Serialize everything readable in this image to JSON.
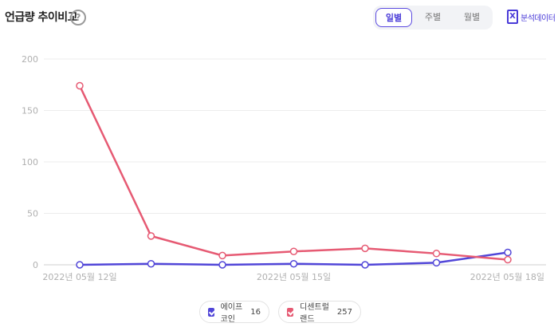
{
  "header": {
    "title": "언급량 추이비교",
    "help_glyph": "?",
    "tabs": [
      {
        "label": "일별",
        "active": true
      },
      {
        "label": "주별",
        "active": false
      },
      {
        "label": "월별",
        "active": false
      }
    ],
    "download_label": "분석데이터"
  },
  "chart_data": {
    "type": "line",
    "y_ticks": [
      "200",
      "150",
      "100",
      "50",
      "0"
    ],
    "ylim": [
      0,
      200
    ],
    "x_labels": [
      "2022년 05월 12일",
      "2022년 05월 15일",
      "2022년 05월 18일"
    ],
    "x": [
      "2022-05-12",
      "2022-05-13",
      "2022-05-14",
      "2022-05-15",
      "2022-05-16",
      "2022-05-17",
      "2022-05-18"
    ],
    "grid": true,
    "series": [
      {
        "name": "에이프코인",
        "color": "#5146d8",
        "values": [
          0,
          1,
          0,
          1,
          0,
          2,
          12
        ]
      },
      {
        "name": "디센트럴랜드",
        "color": "#e65a73",
        "values": [
          174,
          28,
          9,
          13,
          16,
          11,
          5
        ]
      }
    ]
  },
  "legend": [
    {
      "name": "에이프코인",
      "value": "16",
      "color": "#5146d8"
    },
    {
      "name": "디센트럴랜드",
      "value": "257",
      "color": "#e65a73"
    }
  ]
}
